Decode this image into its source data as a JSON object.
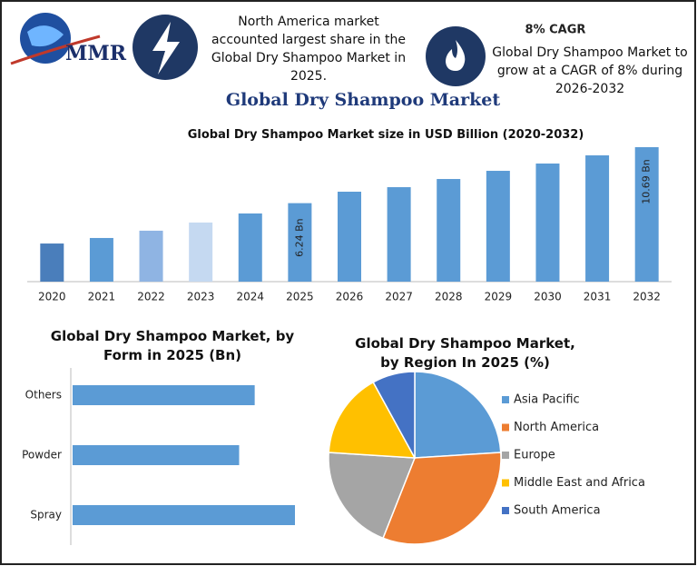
{
  "header": {
    "brand": "MMR",
    "note_left": "North America market accounted largest share in the Global Dry Shampoo Market in 2025.",
    "cagr_title": "8% CAGR",
    "note_right": "Global Dry Shampoo Market to grow at a CAGR of 8% during 2026-2032",
    "title": "Global Dry Shampoo Market"
  },
  "chart_data": [
    {
      "type": "bar",
      "title": "Global Dry Shampoo Market size in USD Billion (2020-2032)",
      "categories": [
        "2020",
        "2021",
        "2022",
        "2023",
        "2024",
        "2025",
        "2026",
        "2027",
        "2028",
        "2029",
        "2030",
        "2031",
        "2032"
      ],
      "values": [
        3.03,
        3.47,
        4.05,
        4.7,
        5.42,
        6.24,
        7.15,
        7.51,
        8.16,
        8.81,
        9.39,
        10.04,
        10.69
      ],
      "value_labels": [
        null,
        null,
        null,
        null,
        null,
        "6.24 Bn",
        null,
        null,
        null,
        null,
        null,
        null,
        "10.69 Bn"
      ],
      "colors": [
        "#4a7ebb",
        "#5b9bd5",
        "#8fb4e3",
        "#c5d9f1",
        "#5b9bd5",
        "#5b9bd5",
        "#5b9bd5",
        "#5b9bd5",
        "#5b9bd5",
        "#5b9bd5",
        "#5b9bd5",
        "#5b9bd5",
        "#5b9bd5"
      ]
    },
    {
      "type": "hbar",
      "title": "Global Dry Shampoo Market, by Form in 2025 (Bn)",
      "categories": [
        "Others",
        "Powder",
        "Spray"
      ],
      "values": [
        1.99,
        1.82,
        2.43
      ],
      "color": "#5b9bd5"
    },
    {
      "type": "pie",
      "title": "Global Dry Shampoo Market, by Region In 2025 (%)",
      "categories": [
        "Asia Pacific",
        "North America",
        "Europe",
        "Middle East and Africa",
        "South America"
      ],
      "values": [
        24,
        32,
        20,
        16,
        8
      ],
      "colors": [
        "#5b9bd5",
        "#ed7d31",
        "#a5a5a5",
        "#ffc000",
        "#4472c4"
      ]
    }
  ]
}
